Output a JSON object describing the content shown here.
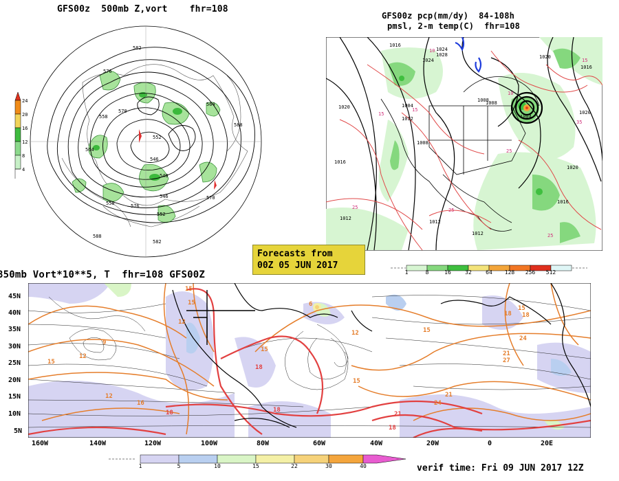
{
  "panel_polar": {
    "title": "GFS00z  500mb Z,vort    fhr=108",
    "colorbar_labels": [
      "24",
      "20",
      "16",
      "12",
      "8",
      "4"
    ],
    "colorbar_colors": [
      "#e1331d",
      "#f08c19",
      "#f1d45a",
      "#3fbb3f",
      "#8cd98c",
      "#c7f0c7"
    ],
    "height_labels": [
      "582",
      "582",
      "576",
      "576",
      "570",
      "570",
      "564",
      "564",
      "558",
      "558",
      "552",
      "552",
      "546",
      "546",
      "540",
      "588",
      "588",
      "582"
    ]
  },
  "panel_precip": {
    "title_line1": "GFS00z pcp(mm/dy)  84-108h",
    "title_line2": "pmsl, 2-m temp(C)  fhr=108",
    "pressure_labels": [
      "1020",
      "1016",
      "1012",
      "1012",
      "1008",
      "1008",
      "1004",
      "1004",
      "1000",
      "1016",
      "1024",
      "1020",
      "1016",
      "1020",
      "1016",
      "1012",
      "1012",
      "1020",
      "1008",
      "1024",
      "1028"
    ],
    "temp_labels": [
      "15",
      "15",
      "25",
      "25",
      "10",
      "10",
      "15",
      "25",
      "35",
      "25",
      "25",
      "25",
      "35",
      "25"
    ],
    "colorbar_values": [
      "1",
      "8",
      "16",
      "32",
      "64",
      "128",
      "256",
      "512"
    ],
    "colorbar_colors": [
      "#ffffff",
      "#d7f5d2",
      "#85d87e",
      "#3fbf3f",
      "#f3e37a",
      "#f3a53a",
      "#f27624",
      "#e0301e",
      "#dff6f6"
    ]
  },
  "forecast_box": {
    "line1": "Forecasts from",
    "line2": "00Z 05 JUN 2017"
  },
  "panel_850": {
    "title": "850mb Vort*10**5, T  fhr=108 GFS00Z",
    "lat_labels": [
      "45N",
      "40N",
      "35N",
      "30N",
      "25N",
      "20N",
      "15N",
      "10N",
      "5N"
    ],
    "lon_labels": [
      "160W",
      "140W",
      "120W",
      "100W",
      "80W",
      "60W",
      "40W",
      "20W",
      "0",
      "20E"
    ],
    "temp_labels": [
      "15",
      "15",
      "12",
      "12",
      "12",
      "16",
      "18",
      "21",
      "18",
      "18",
      "18",
      "15",
      "15",
      "12",
      "15",
      "18",
      "21",
      "24",
      "27",
      "24",
      "21",
      "15",
      "18",
      "15",
      "9",
      "6"
    ],
    "colorbar_values": [
      "1",
      "5",
      "10",
      "15",
      "22",
      "30",
      "40"
    ],
    "colorbar_colors": [
      "#ffffff",
      "#d6d4f2",
      "#b9cff0",
      "#d9f5c6",
      "#f4f0a6",
      "#f6d27a",
      "#f4a53c",
      "#f09030",
      "#e85cd0"
    ]
  },
  "verif_time": "verif time: Fri 09 JUN 2017 12Z"
}
